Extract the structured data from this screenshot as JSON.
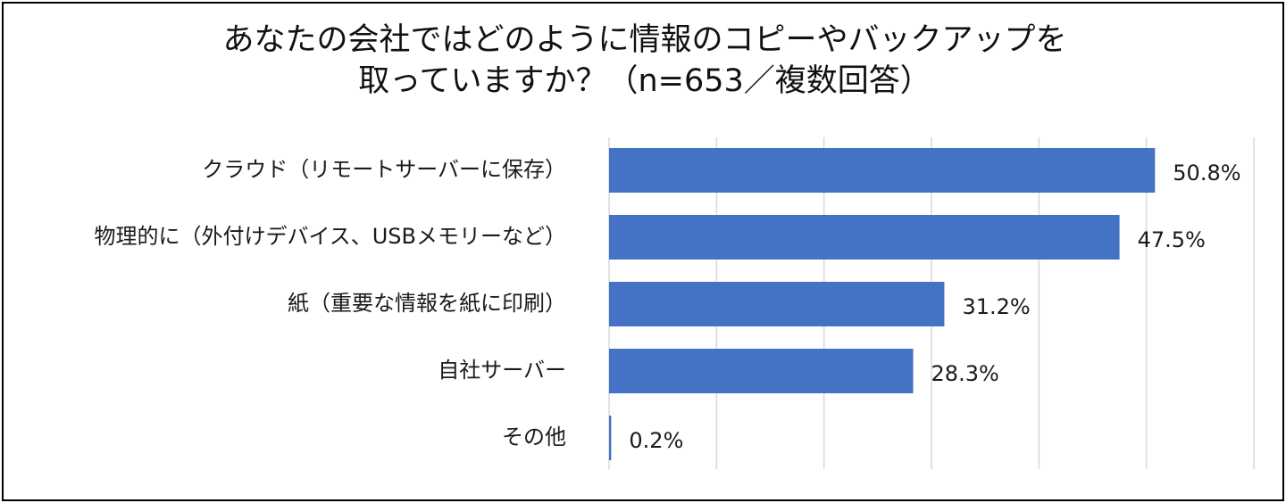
{
  "title": {
    "line1": "あなたの会社ではどのように情報のコピーやバックアップを",
    "line2": "取っていますか？（n=653／複数回答）"
  },
  "colors": {
    "bar": "#4472c4",
    "grid": "#d9d9d9",
    "text": "#1a1a1a"
  },
  "chart_data": {
    "type": "bar",
    "orientation": "horizontal",
    "title": "あなたの会社ではどのように情報のコピーやバックアップを取っていますか？（n=653／複数回答）",
    "categories": [
      "クラウド（リモートサーバーに保存）",
      "物理的に（外付けデバイス、USBメモリーなど）",
      "紙（重要な情報を紙に印刷）",
      "自社サーバー",
      "その他"
    ],
    "values": [
      50.8,
      47.5,
      31.2,
      28.3,
      0.2
    ],
    "value_labels": [
      "50.8%",
      "47.5%",
      "31.2%",
      "28.3%",
      "0.2%"
    ],
    "xlim": [
      0,
      60
    ],
    "grid": true,
    "legend": "none"
  }
}
